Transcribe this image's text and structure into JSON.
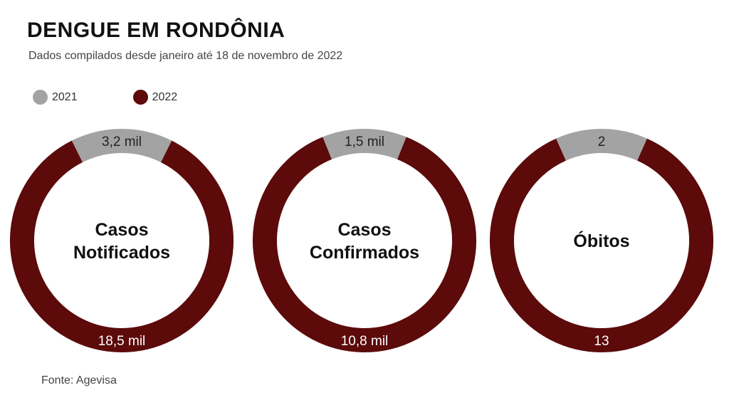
{
  "title": "DENGUE EM RONDÔNIA",
  "subtitle": "Dados compilados desde janeiro até 18 de novembro de 2022",
  "source": "Fonte: Agevisa",
  "colors": {
    "2021": "#a3a3a3",
    "2022": "#5c0a0a"
  },
  "chart_data": {
    "type": "pie",
    "legend": [
      "2021",
      "2022"
    ],
    "legend_position": "top-left",
    "charts": [
      {
        "label_lines": [
          "Casos",
          "Notificados"
        ],
        "values": {
          "2021": 3.2,
          "2022": 18.5
        },
        "value_labels": {
          "2021": "3,2 mil",
          "2022": "18,5 mil"
        }
      },
      {
        "label_lines": [
          "Casos",
          "Confirmados"
        ],
        "values": {
          "2021": 1.5,
          "2022": 10.8
        },
        "value_labels": {
          "2021": "1,5 mil",
          "2022": "10,8 mil"
        }
      },
      {
        "label_lines": [
          "Óbitos"
        ],
        "values": {
          "2021": 2,
          "2022": 13
        },
        "value_labels": {
          "2021": "2",
          "2022": "13"
        }
      }
    ]
  }
}
